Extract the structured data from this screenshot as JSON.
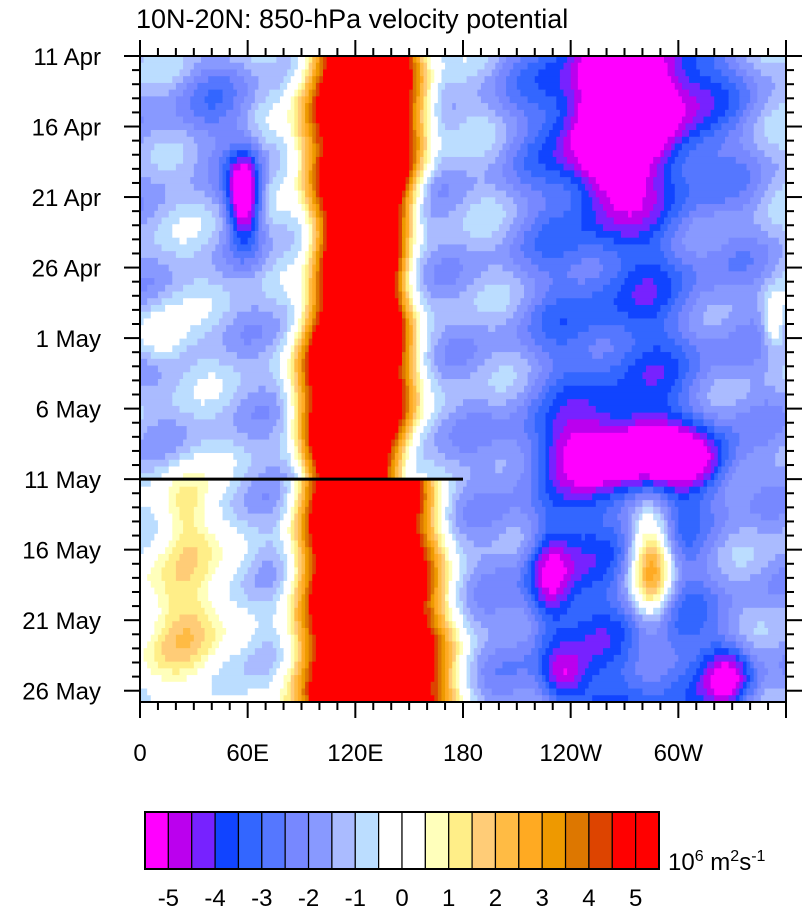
{
  "chart_data": {
    "type": "heatmap",
    "title": "10N-20N: 850-hPa velocity potential",
    "xlabel": "",
    "ylabel": "",
    "x_ticks": [
      {
        "lon": 0,
        "label": "0"
      },
      {
        "lon": 60,
        "label": "60E"
      },
      {
        "lon": 120,
        "label": "120E"
      },
      {
        "lon": 180,
        "label": "180"
      },
      {
        "lon": 240,
        "label": "120W"
      },
      {
        "lon": 300,
        "label": "60W"
      }
    ],
    "y_ticks": [
      {
        "day": 0,
        "label": "11 Apr"
      },
      {
        "day": 5,
        "label": "16 Apr"
      },
      {
        "day": 10,
        "label": "21 Apr"
      },
      {
        "day": 15,
        "label": "26 Apr"
      },
      {
        "day": 20,
        "label": "1 May"
      },
      {
        "day": 25,
        "label": "6 May"
      },
      {
        "day": 30,
        "label": "11 May"
      },
      {
        "day": 35,
        "label": "16 May"
      },
      {
        "day": 40,
        "label": "21 May"
      },
      {
        "day": 45,
        "label": "26 May"
      }
    ],
    "xlim": [
      0,
      360
    ],
    "ylim": [
      0,
      45.8
    ],
    "reference_line": {
      "date": "11 May",
      "lon_start": 0,
      "lon_end": 180
    },
    "colorbar": {
      "levels": [
        -5,
        -4.5,
        -4,
        -3.5,
        -3,
        -2.5,
        -2,
        -1.5,
        -1,
        -0.5,
        0,
        0.5,
        1,
        1.5,
        2,
        2.5,
        3,
        3.5,
        4,
        4.5,
        5
      ],
      "labels": [
        "-5",
        "-4",
        "-3",
        "-2",
        "-1",
        "0",
        "1",
        "2",
        "3",
        "4",
        "5"
      ],
      "colors": [
        "#ff00ff",
        "#bb00ee",
        "#7722ff",
        "#1144ff",
        "#3366ff",
        "#5577ff",
        "#7788ff",
        "#8899ff",
        "#aabbff",
        "#bbddff",
        "#ffffff",
        "#ffffff",
        "#ffffbb",
        "#ffee88",
        "#ffcc77",
        "#ffbb44",
        "#ffaa22",
        "#ee9900",
        "#dd7700",
        "#dd4400",
        "#ff0000",
        "#ff0000"
      ],
      "unit_base": "10",
      "unit_exp": "6",
      "unit_main": " m",
      "unit_exp2": "2",
      "unit_s": "s",
      "unit_exp3": "-1"
    }
  }
}
